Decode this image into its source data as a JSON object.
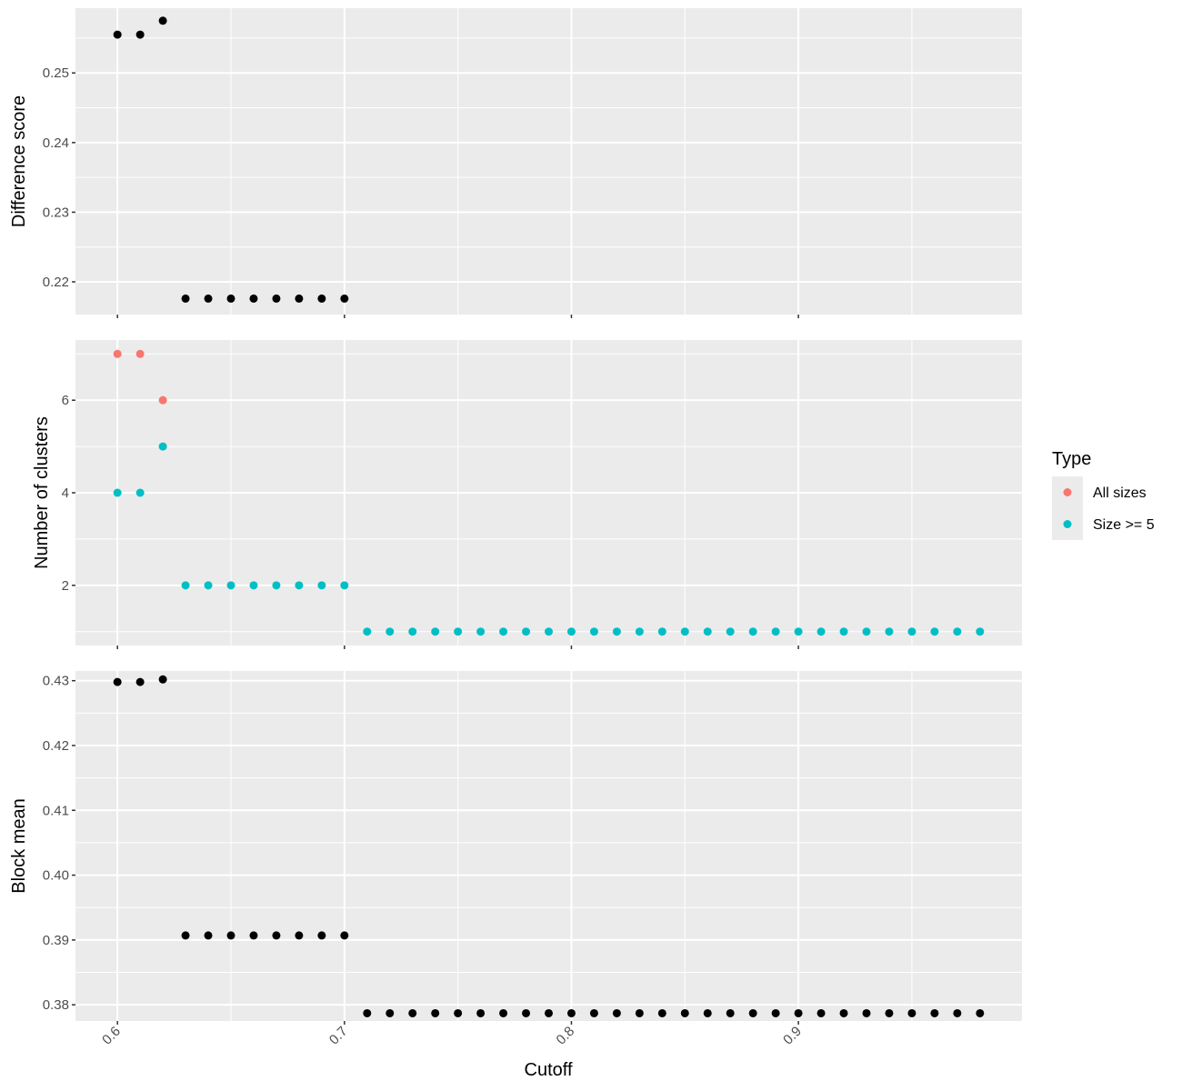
{
  "chart_data": {
    "type": "scatter",
    "x_label": "Cutoff",
    "x_ticks": [
      0.6,
      0.7,
      0.8,
      0.9
    ],
    "x_tick_labels": [
      "0.6",
      "0.7",
      "0.8",
      "0.9"
    ],
    "xlim": [
      0.5815,
      0.9985
    ],
    "grid": true,
    "legend": {
      "title": "Type",
      "position": "right",
      "entries": [
        {
          "name": "All sizes",
          "color": "#F8766D"
        },
        {
          "name": "Size >= 5",
          "color": "#00BFC4"
        }
      ]
    },
    "panels": [
      {
        "ylabel": "Difference score",
        "ylim": [
          0.2153,
          0.2593
        ],
        "y_ticks": [
          0.22,
          0.23,
          0.24,
          0.25
        ],
        "y_tick_labels": [
          "0.22",
          "0.23",
          "0.24",
          "0.25"
        ],
        "series": [
          {
            "color": "#000000",
            "x": [
              0.6,
              0.61,
              0.62,
              0.63,
              0.64,
              0.65,
              0.66,
              0.67,
              0.68,
              0.69,
              0.7
            ],
            "y": [
              0.2555,
              0.2555,
              0.2575,
              0.2176,
              0.2176,
              0.2176,
              0.2176,
              0.2176,
              0.2176,
              0.2176,
              0.2176
            ]
          }
        ]
      },
      {
        "ylabel": "Number of clusters",
        "ylim": [
          0.7,
          7.3
        ],
        "y_ticks": [
          2,
          4,
          6
        ],
        "y_tick_labels": [
          "2",
          "4",
          "6"
        ],
        "series": [
          {
            "name": "All sizes",
            "color": "#F8766D",
            "x": [
              0.6,
              0.61,
              0.62
            ],
            "y": [
              7,
              7,
              6
            ]
          },
          {
            "name": "Size >= 5",
            "color": "#00BFC4",
            "x": [
              0.6,
              0.61,
              0.62,
              0.63,
              0.64,
              0.65,
              0.66,
              0.67,
              0.68,
              0.69,
              0.7,
              0.71,
              0.72,
              0.73,
              0.74,
              0.75,
              0.76,
              0.77,
              0.78,
              0.79,
              0.8,
              0.81,
              0.82,
              0.83,
              0.84,
              0.85,
              0.86,
              0.87,
              0.88,
              0.89,
              0.9,
              0.91,
              0.92,
              0.93,
              0.94,
              0.95,
              0.96,
              0.97,
              0.98
            ],
            "y": [
              4,
              4,
              5,
              2,
              2,
              2,
              2,
              2,
              2,
              2,
              2,
              1,
              1,
              1,
              1,
              1,
              1,
              1,
              1,
              1,
              1,
              1,
              1,
              1,
              1,
              1,
              1,
              1,
              1,
              1,
              1,
              1,
              1,
              1,
              1,
              1,
              1,
              1,
              1
            ]
          }
        ]
      },
      {
        "ylabel": "Block mean",
        "ylim": [
          0.3775,
          0.4315
        ],
        "y_ticks": [
          0.38,
          0.39,
          0.4,
          0.41,
          0.42,
          0.43
        ],
        "y_tick_labels": [
          "0.38",
          "0.39",
          "0.40",
          "0.41",
          "0.42",
          "0.43"
        ],
        "series": [
          {
            "color": "#000000",
            "x": [
              0.6,
              0.61,
              0.62,
              0.63,
              0.64,
              0.65,
              0.66,
              0.67,
              0.68,
              0.69,
              0.7,
              0.71,
              0.72,
              0.73,
              0.74,
              0.75,
              0.76,
              0.77,
              0.78,
              0.79,
              0.8,
              0.81,
              0.82,
              0.83,
              0.84,
              0.85,
              0.86,
              0.87,
              0.88,
              0.89,
              0.9,
              0.91,
              0.92,
              0.93,
              0.94,
              0.95,
              0.96,
              0.97,
              0.98
            ],
            "y": [
              0.4298,
              0.4298,
              0.4302,
              0.3907,
              0.3907,
              0.3907,
              0.3907,
              0.3907,
              0.3907,
              0.3907,
              0.3907,
              0.3787,
              0.3787,
              0.3787,
              0.3787,
              0.3787,
              0.3787,
              0.3787,
              0.3787,
              0.3787,
              0.3787,
              0.3787,
              0.3787,
              0.3787,
              0.3787,
              0.3787,
              0.3787,
              0.3787,
              0.3787,
              0.3787,
              0.3787,
              0.3787,
              0.3787,
              0.3787,
              0.3787,
              0.3787,
              0.3787,
              0.3787,
              0.3787
            ]
          }
        ]
      }
    ]
  }
}
